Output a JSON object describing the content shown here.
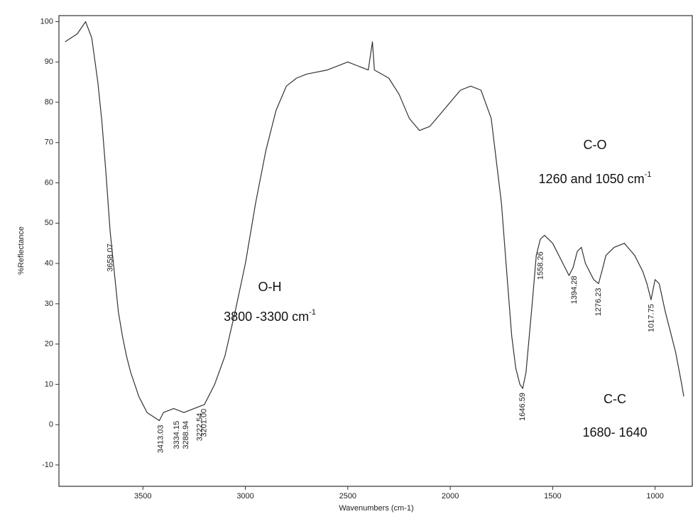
{
  "chart_data": {
    "type": "line",
    "y_label": "%Reflectance",
    "x_label": "Wavenumbers (cm-1)",
    "xlim": [
      3910,
      815
    ],
    "ylim": [
      -15.3,
      101.5
    ],
    "xticks": [
      3500,
      3000,
      2500,
      2000,
      1500,
      1000
    ],
    "yticks": [
      -10,
      0,
      10,
      20,
      30,
      40,
      50,
      60,
      70,
      80,
      90,
      100
    ],
    "color": "#333333",
    "x": [
      3880,
      3820,
      3780,
      3750,
      3720,
      3700,
      3680,
      3660,
      3640,
      3620,
      3600,
      3580,
      3560,
      3540,
      3520,
      3500,
      3480,
      3450,
      3420,
      3400,
      3350,
      3300,
      3250,
      3200,
      3150,
      3100,
      3050,
      3000,
      2950,
      2900,
      2850,
      2800,
      2750,
      2700,
      2600,
      2500,
      2450,
      2400,
      2380,
      2370,
      2300,
      2250,
      2200,
      2150,
      2100,
      2050,
      2000,
      1950,
      1900,
      1850,
      1800,
      1750,
      1720,
      1700,
      1680,
      1660,
      1646,
      1630,
      1600,
      1580,
      1560,
      1540,
      1500,
      1450,
      1420,
      1400,
      1380,
      1360,
      1340,
      1300,
      1276,
      1260,
      1240,
      1200,
      1150,
      1100,
      1060,
      1040,
      1020,
      1000,
      980,
      950,
      900,
      870,
      860
    ],
    "values": [
      95,
      97,
      100,
      96,
      85,
      75,
      62,
      48,
      38,
      28,
      22,
      17,
      13,
      10,
      7,
      5,
      3,
      2,
      1,
      3,
      4,
      3,
      4,
      5,
      10,
      17,
      28,
      40,
      55,
      68,
      78,
      84,
      86,
      87,
      88,
      90,
      89,
      88,
      95,
      88,
      86,
      82,
      76,
      73,
      74,
      77,
      80,
      83,
      84,
      83,
      76,
      55,
      35,
      22,
      14,
      10,
      9,
      13,
      30,
      42,
      46,
      47,
      45,
      40,
      37,
      39,
      43,
      44,
      40,
      36,
      35,
      38,
      42,
      44,
      45,
      42,
      38,
      35,
      31,
      36,
      35,
      28,
      18,
      10,
      7
    ],
    "peaks": [
      {
        "value": 3658.07,
        "label": "3658.07",
        "y": 46
      },
      {
        "value": 3413.03,
        "label": "3413.03",
        "y": 1
      },
      {
        "value": 3334.15,
        "label": "3334.15",
        "y": 2
      },
      {
        "value": 3288.94,
        "label": "3288.94",
        "y": 2
      },
      {
        "value": 3222.54,
        "label": "3222.54",
        "y": 4
      },
      {
        "value": 3201.0,
        "label": "3201.00",
        "y": 5
      },
      {
        "value": 1646.59,
        "label": "1646.59",
        "y": 9
      },
      {
        "value": 1558.26,
        "label": "1558.26",
        "y": 44
      },
      {
        "value": 1394.28,
        "label": "1394.28",
        "y": 38
      },
      {
        "value": 1276.23,
        "label": "1276.23",
        "y": 35
      },
      {
        "value": 1017.75,
        "label": "1017.75",
        "y": 31
      }
    ],
    "annotations": [
      {
        "title": "O-H",
        "range": "3800 -3300 cm",
        "sup": "-1"
      },
      {
        "title": "C-O",
        "range": "1260 and 1050 cm",
        "sup": "-1"
      },
      {
        "title": "C-C",
        "range": "1680- 1640"
      }
    ]
  }
}
